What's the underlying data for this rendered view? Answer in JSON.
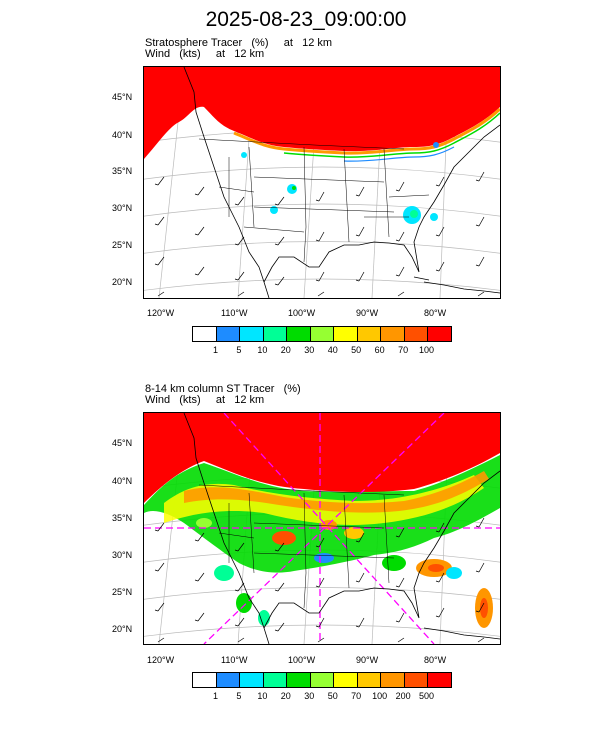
{
  "title": "2025-08-23_09:00:00",
  "colors": {
    "red": "#ff0000",
    "orange_red": "#ff5500",
    "orange": "#ff9900",
    "dashed_line": "#ff00ff"
  },
  "panels": [
    {
      "label_line1": "Stratosphere Tracer   (%)     at   12 km",
      "label_line2": "Wind   (kts)     at   12 km",
      "lat_labels": [
        "45°N",
        "40°N",
        "35°N",
        "30°N",
        "25°N",
        "20°N"
      ],
      "lon_labels": [
        "120°W",
        "110°W",
        "100°W",
        "90°W",
        "80°W"
      ],
      "colorbar": {
        "colors": [
          "#ffffff",
          "#1e8cff",
          "#00e6ff",
          "#00ff96",
          "#00dc00",
          "#96ff32",
          "#ffff00",
          "#ffc800",
          "#ff9600",
          "#ff5000",
          "#ff0000"
        ],
        "labels": [
          "1",
          "5",
          "10",
          "20",
          "30",
          "40",
          "50",
          "60",
          "70",
          "100"
        ]
      }
    },
    {
      "label_line1": "8-14 km column ST Tracer   (%)",
      "label_line2": "Wind   (kts)     at   12 km",
      "lat_labels": [
        "45°N",
        "40°N",
        "35°N",
        "30°N",
        "25°N",
        "20°N"
      ],
      "lon_labels": [
        "120°W",
        "110°W",
        "100°W",
        "90°W",
        "80°W"
      ],
      "colorbar": {
        "colors": [
          "#ffffff",
          "#1e8cff",
          "#00e6ff",
          "#00ff96",
          "#00dc00",
          "#96ff32",
          "#ffff00",
          "#ffc800",
          "#ff9600",
          "#ff5000",
          "#ff0000"
        ],
        "labels": [
          "1",
          "5",
          "10",
          "20",
          "30",
          "50",
          "70",
          "100",
          "200",
          "500"
        ]
      }
    }
  ]
}
